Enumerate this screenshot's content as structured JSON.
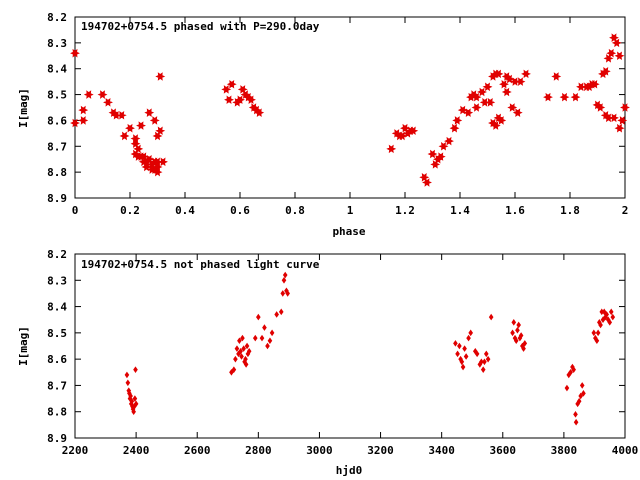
{
  "chart_data": [
    {
      "type": "scatter",
      "title": "194702+0754.5 phased with P=290.0day",
      "xlabel": "phase",
      "ylabel": "I[mag]",
      "xlim": [
        0,
        2
      ],
      "ylim": [
        8.2,
        8.9
      ],
      "y_inverted": true,
      "xticks": [
        "0",
        "0.2",
        "0.4",
        "0.6",
        "0.8",
        "1",
        "1.2",
        "1.4",
        "1.6",
        "1.8",
        "2"
      ],
      "yticks": [
        "8.2",
        "8.3",
        "8.4",
        "8.5",
        "8.6",
        "8.7",
        "8.8",
        "8.9"
      ],
      "marker_color": "#e00000",
      "marker": "star",
      "grid": false,
      "points": [
        [
          0.0,
          8.34
        ],
        [
          0.0,
          8.61
        ],
        [
          0.03,
          8.56
        ],
        [
          0.03,
          8.6
        ],
        [
          0.05,
          8.5
        ],
        [
          0.1,
          8.5
        ],
        [
          0.12,
          8.53
        ],
        [
          0.14,
          8.57
        ],
        [
          0.15,
          8.58
        ],
        [
          0.17,
          8.58
        ],
        [
          0.18,
          8.66
        ],
        [
          0.2,
          8.63
        ],
        [
          0.22,
          8.67
        ],
        [
          0.22,
          8.69
        ],
        [
          0.22,
          8.73
        ],
        [
          0.23,
          8.74
        ],
        [
          0.23,
          8.71
        ],
        [
          0.24,
          8.74
        ],
        [
          0.24,
          8.62
        ],
        [
          0.25,
          8.76
        ],
        [
          0.25,
          8.74
        ],
        [
          0.26,
          8.78
        ],
        [
          0.26,
          8.76
        ],
        [
          0.27,
          8.75
        ],
        [
          0.27,
          8.57
        ],
        [
          0.28,
          8.77
        ],
        [
          0.28,
          8.79
        ],
        [
          0.29,
          8.76
        ],
        [
          0.29,
          8.6
        ],
        [
          0.29,
          8.79
        ],
        [
          0.3,
          8.8
        ],
        [
          0.3,
          8.78
        ],
        [
          0.3,
          8.76
        ],
        [
          0.3,
          8.66
        ],
        [
          0.31,
          8.64
        ],
        [
          0.31,
          8.43
        ],
        [
          0.32,
          8.76
        ],
        [
          0.55,
          8.48
        ],
        [
          0.56,
          8.52
        ],
        [
          0.57,
          8.46
        ],
        [
          0.59,
          8.53
        ],
        [
          0.6,
          8.52
        ],
        [
          0.61,
          8.48
        ],
        [
          0.62,
          8.5
        ],
        [
          0.63,
          8.51
        ],
        [
          0.64,
          8.52
        ],
        [
          0.65,
          8.55
        ],
        [
          0.66,
          8.56
        ],
        [
          0.67,
          8.57
        ],
        [
          1.15,
          8.71
        ],
        [
          1.17,
          8.65
        ],
        [
          1.18,
          8.66
        ],
        [
          1.19,
          8.66
        ],
        [
          1.2,
          8.63
        ],
        [
          1.21,
          8.65
        ],
        [
          1.22,
          8.64
        ],
        [
          1.23,
          8.64
        ],
        [
          1.27,
          8.82
        ],
        [
          1.28,
          8.84
        ],
        [
          1.3,
          8.73
        ],
        [
          1.31,
          8.77
        ],
        [
          1.32,
          8.75
        ],
        [
          1.33,
          8.74
        ],
        [
          1.34,
          8.7
        ],
        [
          1.36,
          8.68
        ],
        [
          1.38,
          8.63
        ],
        [
          1.39,
          8.6
        ],
        [
          1.41,
          8.56
        ],
        [
          1.43,
          8.57
        ],
        [
          1.44,
          8.51
        ],
        [
          1.45,
          8.5
        ],
        [
          1.46,
          8.51
        ],
        [
          1.46,
          8.55
        ],
        [
          1.48,
          8.49
        ],
        [
          1.49,
          8.53
        ],
        [
          1.5,
          8.47
        ],
        [
          1.51,
          8.53
        ],
        [
          1.52,
          8.61
        ],
        [
          1.52,
          8.43
        ],
        [
          1.53,
          8.42
        ],
        [
          1.53,
          8.62
        ],
        [
          1.54,
          8.59
        ],
        [
          1.54,
          8.42
        ],
        [
          1.55,
          8.6
        ],
        [
          1.56,
          8.46
        ],
        [
          1.57,
          8.43
        ],
        [
          1.57,
          8.49
        ],
        [
          1.58,
          8.44
        ],
        [
          1.59,
          8.55
        ],
        [
          1.6,
          8.45
        ],
        [
          1.61,
          8.57
        ],
        [
          1.62,
          8.45
        ],
        [
          1.64,
          8.42
        ],
        [
          1.72,
          8.51
        ],
        [
          1.75,
          8.43
        ],
        [
          1.78,
          8.51
        ],
        [
          1.82,
          8.51
        ],
        [
          1.84,
          8.47
        ],
        [
          1.86,
          8.47
        ],
        [
          1.87,
          8.47
        ],
        [
          1.88,
          8.46
        ],
        [
          1.89,
          8.46
        ],
        [
          1.9,
          8.54
        ],
        [
          1.91,
          8.55
        ],
        [
          1.92,
          8.42
        ],
        [
          1.93,
          8.41
        ],
        [
          1.93,
          8.58
        ],
        [
          1.94,
          8.36
        ],
        [
          1.94,
          8.59
        ],
        [
          1.95,
          8.34
        ],
        [
          1.96,
          8.59
        ],
        [
          1.96,
          8.28
        ],
        [
          1.97,
          8.3
        ],
        [
          1.98,
          8.35
        ],
        [
          1.98,
          8.63
        ],
        [
          1.99,
          8.6
        ],
        [
          2.0,
          8.55
        ]
      ]
    },
    {
      "type": "scatter",
      "title": "194702+0754.5 not phased light curve",
      "xlabel": "hjd0",
      "ylabel": "I[mag]",
      "xlim": [
        2200,
        4000
      ],
      "ylim": [
        8.2,
        8.9
      ],
      "y_inverted": true,
      "xticks": [
        "2200",
        "2400",
        "2600",
        "2800",
        "3000",
        "3200",
        "3400",
        "3600",
        "3800",
        "4000"
      ],
      "yticks": [
        "8.2",
        "8.3",
        "8.4",
        "8.5",
        "8.6",
        "8.7",
        "8.8",
        "8.9"
      ],
      "marker_color": "#e00000",
      "marker": "diamond",
      "grid": false,
      "points": [
        [
          2370,
          8.66
        ],
        [
          2373,
          8.69
        ],
        [
          2376,
          8.72
        ],
        [
          2378,
          8.73
        ],
        [
          2380,
          8.75
        ],
        [
          2382,
          8.74
        ],
        [
          2384,
          8.77
        ],
        [
          2386,
          8.76
        ],
        [
          2388,
          8.78
        ],
        [
          2390,
          8.79
        ],
        [
          2392,
          8.8
        ],
        [
          2394,
          8.78
        ],
        [
          2396,
          8.75
        ],
        [
          2398,
          8.64
        ],
        [
          2400,
          8.77
        ],
        [
          2712,
          8.65
        ],
        [
          2720,
          8.64
        ],
        [
          2725,
          8.6
        ],
        [
          2730,
          8.56
        ],
        [
          2735,
          8.58
        ],
        [
          2738,
          8.53
        ],
        [
          2742,
          8.57
        ],
        [
          2745,
          8.59
        ],
        [
          2748,
          8.52
        ],
        [
          2752,
          8.56
        ],
        [
          2755,
          8.61
        ],
        [
          2758,
          8.6
        ],
        [
          2760,
          8.62
        ],
        [
          2763,
          8.55
        ],
        [
          2766,
          8.58
        ],
        [
          2770,
          8.57
        ],
        [
          2790,
          8.52
        ],
        [
          2800,
          8.44
        ],
        [
          2812,
          8.52
        ],
        [
          2820,
          8.48
        ],
        [
          2830,
          8.55
        ],
        [
          2838,
          8.53
        ],
        [
          2845,
          8.5
        ],
        [
          2860,
          8.43
        ],
        [
          2875,
          8.42
        ],
        [
          2880,
          8.35
        ],
        [
          2884,
          8.3
        ],
        [
          2888,
          8.28
        ],
        [
          2892,
          8.34
        ],
        [
          2896,
          8.35
        ],
        [
          3445,
          8.54
        ],
        [
          3452,
          8.58
        ],
        [
          3458,
          8.55
        ],
        [
          3462,
          8.6
        ],
        [
          3466,
          8.61
        ],
        [
          3470,
          8.63
        ],
        [
          3475,
          8.56
        ],
        [
          3480,
          8.59
        ],
        [
          3488,
          8.52
        ],
        [
          3495,
          8.5
        ],
        [
          3510,
          8.57
        ],
        [
          3516,
          8.58
        ],
        [
          3525,
          8.62
        ],
        [
          3530,
          8.61
        ],
        [
          3536,
          8.64
        ],
        [
          3540,
          8.61
        ],
        [
          3546,
          8.58
        ],
        [
          3552,
          8.6
        ],
        [
          3562,
          8.44
        ],
        [
          3632,
          8.5
        ],
        [
          3636,
          8.46
        ],
        [
          3640,
          8.52
        ],
        [
          3644,
          8.53
        ],
        [
          3648,
          8.49
        ],
        [
          3652,
          8.47
        ],
        [
          3656,
          8.52
        ],
        [
          3660,
          8.51
        ],
        [
          3664,
          8.55
        ],
        [
          3668,
          8.56
        ],
        [
          3672,
          8.54
        ],
        [
          3810,
          8.71
        ],
        [
          3816,
          8.66
        ],
        [
          3822,
          8.65
        ],
        [
          3828,
          8.63
        ],
        [
          3832,
          8.64
        ],
        [
          3838,
          8.81
        ],
        [
          3840,
          8.84
        ],
        [
          3845,
          8.77
        ],
        [
          3850,
          8.76
        ],
        [
          3855,
          8.74
        ],
        [
          3860,
          8.7
        ],
        [
          3864,
          8.73
        ],
        [
          3898,
          8.5
        ],
        [
          3903,
          8.52
        ],
        [
          3908,
          8.53
        ],
        [
          3912,
          8.5
        ],
        [
          3916,
          8.46
        ],
        [
          3920,
          8.47
        ],
        [
          3924,
          8.42
        ],
        [
          3928,
          8.45
        ],
        [
          3932,
          8.42
        ],
        [
          3936,
          8.44
        ],
        [
          3940,
          8.43
        ],
        [
          3945,
          8.45
        ],
        [
          3950,
          8.46
        ],
        [
          3955,
          8.42
        ],
        [
          3960,
          8.44
        ]
      ]
    }
  ]
}
